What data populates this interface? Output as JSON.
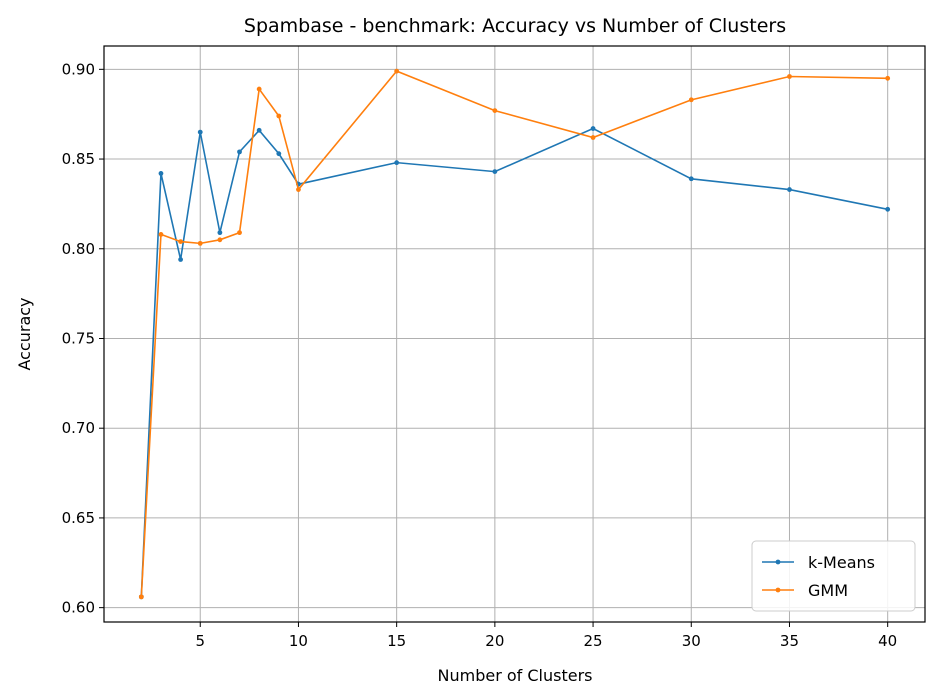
{
  "chart_data": {
    "type": "line",
    "title": "Spambase - benchmark: Accuracy vs Number of Clusters",
    "xlabel": "Number of Clusters",
    "ylabel": "Accuracy",
    "xlim": [
      0.1,
      41.9
    ],
    "ylim": [
      0.592,
      0.913
    ],
    "xticks": [
      5,
      10,
      15,
      20,
      25,
      30,
      35,
      40
    ],
    "yticks": [
      0.6,
      0.65,
      0.7,
      0.75,
      0.8,
      0.85,
      0.9
    ],
    "ytick_labels": [
      "0.60",
      "0.65",
      "0.70",
      "0.75",
      "0.80",
      "0.85",
      "0.90"
    ],
    "grid": true,
    "legend_position": "bottom-right",
    "x": [
      2,
      3,
      4,
      5,
      6,
      7,
      8,
      9,
      10,
      15,
      20,
      25,
      30,
      35,
      40
    ],
    "series": [
      {
        "name": "k-Means",
        "color": "#1f77b4",
        "values": [
          0.606,
          0.842,
          0.794,
          0.865,
          0.809,
          0.854,
          0.866,
          0.853,
          0.836,
          0.848,
          0.843,
          0.867,
          0.839,
          0.833,
          0.822
        ]
      },
      {
        "name": "GMM",
        "color": "#ff7f0e",
        "values": [
          0.606,
          0.808,
          0.804,
          0.803,
          0.805,
          0.809,
          0.889,
          0.874,
          0.833,
          0.899,
          0.877,
          0.862,
          0.883,
          0.896,
          0.895
        ]
      }
    ]
  }
}
